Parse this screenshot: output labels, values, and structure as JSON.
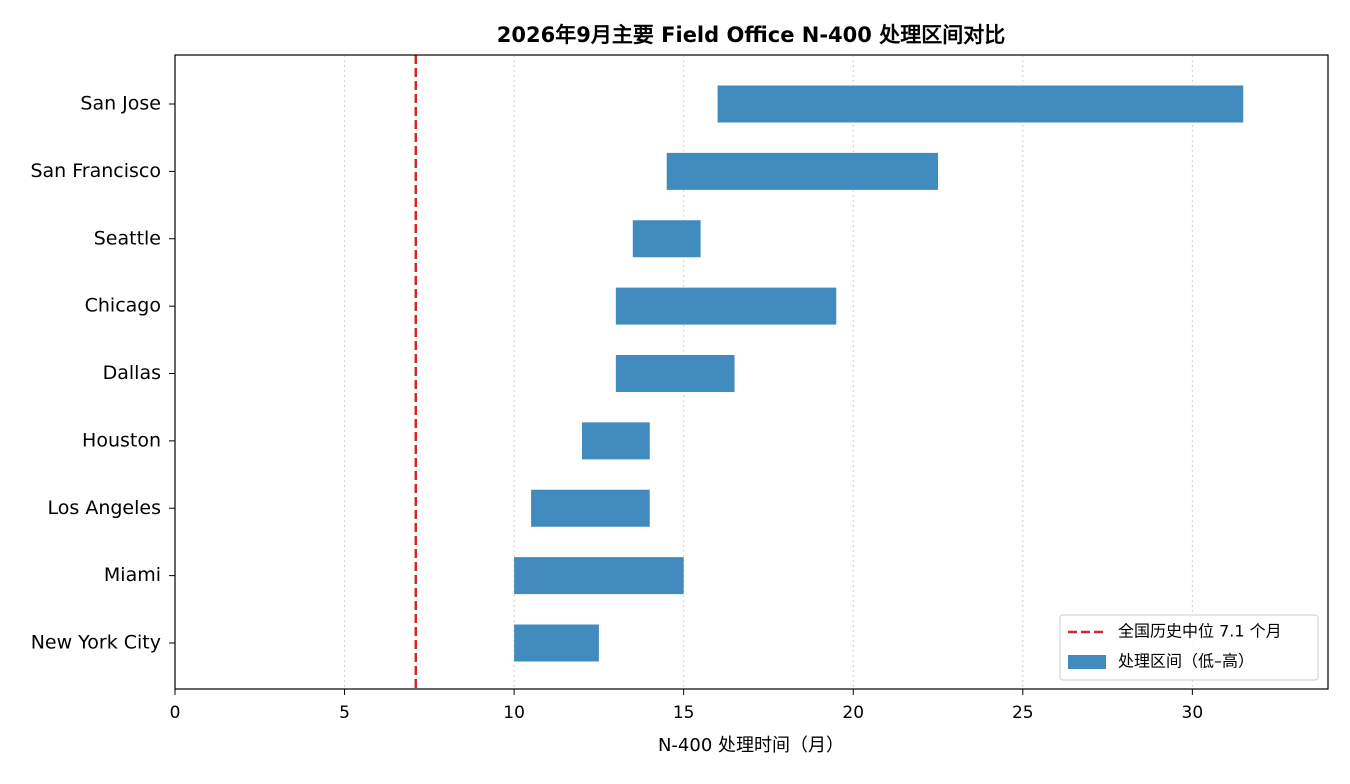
{
  "chart_data": {
    "type": "range-bar",
    "title": "2026年9月主要 Field Office N-400 处理区间对比",
    "x_label": "N-400 处理时间（月）",
    "categories": [
      "San Jose",
      "San Francisco",
      "Seattle",
      "Chicago",
      "Dallas",
      "Houston",
      "Los Angeles",
      "Miami",
      "New York City"
    ],
    "series": [
      {
        "name": "处理区间（低–高）",
        "color": "#428bbf",
        "starts": [
          16,
          14.5,
          13.5,
          13,
          13,
          12,
          10.5,
          10,
          10
        ],
        "ends": [
          31.5,
          22.5,
          15.5,
          19.5,
          16.5,
          14,
          14,
          15,
          12.5
        ]
      }
    ],
    "reference_line": {
      "value": 7.1,
      "label": "全国历史中位 7.1 个月",
      "color": "#d62728"
    },
    "xlim": [
      0,
      34
    ],
    "xticks": [
      0,
      5,
      10,
      15,
      20,
      25,
      30
    ],
    "grid": true,
    "legend": "lower right"
  }
}
